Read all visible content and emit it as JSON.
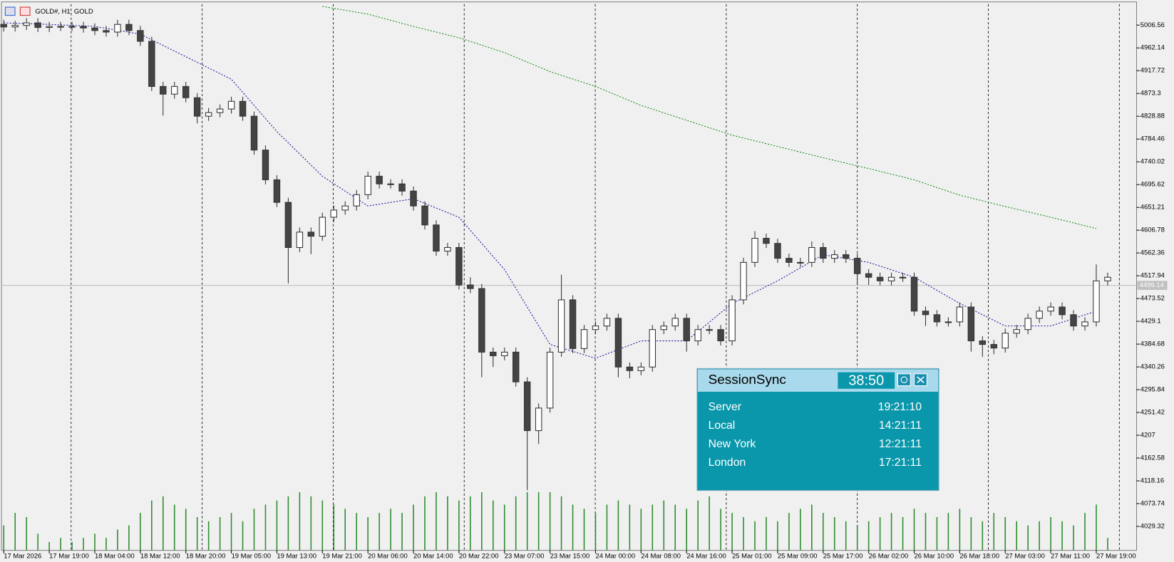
{
  "window": {
    "symbol_label": "GOLD#, H1: GOLD"
  },
  "chart_data": {
    "type": "candlestick",
    "open": [
      5008,
      5003,
      5006,
      5011,
      5002,
      5004,
      5004,
      5004,
      5001,
      4996,
      4993,
      5008,
      4996,
      4975,
      4887,
      4872,
      4887,
      4865,
      4829,
      4836,
      4843,
      4858,
      4829,
      4763,
      4705,
      4661,
      4573,
      4603,
      4595,
      4632,
      4646,
      4654,
      4676,
      4712,
      4697,
      4697,
      4683,
      4654,
      4617,
      4566,
      4573,
      4500,
      4493,
      4369,
      4362,
      4369,
      4311,
      4216,
      4260,
      4369,
      4471,
      4376,
      4413,
      4420,
      4435,
      4340,
      4333,
      4340,
      4413,
      4420,
      4435,
      4391,
      4413,
      4413,
      4391,
      4471,
      4544,
      4591,
      4581,
      4552,
      4544,
      4544,
      4573,
      4552,
      4559,
      4552,
      4522,
      4515,
      4508,
      4515,
      4515,
      4449,
      4442,
      4428,
      4428,
      4457,
      4391,
      4384,
      4377,
      4406,
      4413,
      4435,
      4449,
      4457,
      4442,
      4420,
      4428,
      4508
    ],
    "high": [
      5017,
      5015,
      5020,
      5020,
      5013,
      5013,
      5013,
      5013,
      5010,
      5005,
      5017,
      5017,
      5005,
      4984,
      4896,
      4896,
      4896,
      4874,
      4845,
      4852,
      4867,
      4867,
      4838,
      4772,
      4714,
      4670,
      4612,
      4612,
      4641,
      4655,
      4663,
      4685,
      4721,
      4721,
      4706,
      4706,
      4692,
      4663,
      4626,
      4582,
      4582,
      4515,
      4502,
      4378,
      4378,
      4378,
      4320,
      4269,
      4378,
      4520,
      4480,
      4422,
      4429,
      4444,
      4444,
      4349,
      4349,
      4422,
      4429,
      4444,
      4444,
      4422,
      4422,
      4422,
      4480,
      4553,
      4605,
      4600,
      4590,
      4561,
      4553,
      4585,
      4582,
      4568,
      4568,
      4561,
      4531,
      4524,
      4524,
      4524,
      4524,
      4458,
      4451,
      4437,
      4466,
      4466,
      4400,
      4393,
      4415,
      4422,
      4444,
      4458,
      4466,
      4466,
      4451,
      4437,
      4540,
      4524
    ],
    "low": [
      4994,
      4994,
      4997,
      4993,
      4993,
      4995,
      4995,
      4992,
      4987,
      4984,
      4984,
      4987,
      4966,
      4878,
      4830,
      4863,
      4856,
      4815,
      4820,
      4827,
      4834,
      4820,
      4754,
      4696,
      4652,
      4503,
      4564,
      4560,
      4586,
      4623,
      4637,
      4645,
      4667,
      4688,
      4688,
      4674,
      4645,
      4608,
      4557,
      4557,
      4491,
      4484,
      4320,
      4340,
      4353,
      4302,
      4100,
      4190,
      4251,
      4360,
      4367,
      4367,
      4404,
      4411,
      4320,
      4318,
      4324,
      4331,
      4404,
      4411,
      4370,
      4382,
      4404,
      4382,
      4382,
      4462,
      4535,
      4572,
      4543,
      4535,
      4535,
      4535,
      4543,
      4543,
      4543,
      4500,
      4500,
      4499,
      4499,
      4506,
      4440,
      4420,
      4419,
      4419,
      4419,
      4370,
      4360,
      4365,
      4368,
      4397,
      4404,
      4426,
      4440,
      4433,
      4411,
      4411,
      4419,
      4499
    ],
    "close": [
      5003,
      5006,
      5011,
      5002,
      5004,
      5004,
      5004,
      5001,
      4996,
      4993,
      5008,
      4996,
      4975,
      4887,
      4872,
      4887,
      4865,
      4829,
      4836,
      4843,
      4858,
      4829,
      4763,
      4705,
      4661,
      4573,
      4603,
      4595,
      4632,
      4646,
      4654,
      4676,
      4712,
      4697,
      4697,
      4683,
      4654,
      4617,
      4566,
      4573,
      4500,
      4493,
      4369,
      4362,
      4369,
      4311,
      4216,
      4260,
      4369,
      4471,
      4376,
      4413,
      4420,
      4435,
      4340,
      4333,
      4340,
      4413,
      4420,
      4435,
      4391,
      4413,
      4413,
      4391,
      4471,
      4544,
      4591,
      4581,
      4552,
      4544,
      4544,
      4573,
      4552,
      4559,
      4552,
      4522,
      4515,
      4508,
      4515,
      4515,
      4449,
      4442,
      4428,
      4428,
      4457,
      4391,
      4384,
      4377,
      4406,
      4413,
      4435,
      4449,
      4457,
      4442,
      4420,
      4428,
      4508,
      4515
    ],
    "volume": [
      30,
      45,
      40,
      20,
      10,
      15,
      10,
      15,
      20,
      15,
      25,
      30,
      45,
      60,
      65,
      55,
      50,
      40,
      35,
      40,
      45,
      35,
      50,
      55,
      60,
      65,
      70,
      65,
      60,
      55,
      50,
      45,
      40,
      45,
      50,
      45,
      55,
      65,
      70,
      65,
      60,
      65,
      70,
      60,
      55,
      65,
      70,
      70,
      70,
      65,
      55,
      50,
      45,
      55,
      60,
      55,
      50,
      55,
      60,
      55,
      50,
      60,
      65,
      50,
      45,
      40,
      35,
      40,
      35,
      45,
      50,
      55,
      45,
      40,
      35,
      30,
      35,
      40,
      45,
      40,
      50,
      45,
      40,
      45,
      50,
      40,
      35,
      45,
      40,
      35,
      30,
      35,
      40,
      35,
      30,
      45,
      55,
      15
    ],
    "vlim": [
      0,
      90
    ],
    "time_labels": [
      "17 Mar 2026",
      "17 Mar 19:00",
      "18 Mar 04:00",
      "18 Mar 12:00",
      "18 Mar 20:00",
      "19 Mar 05:00",
      "19 Mar 13:00",
      "19 Mar 21:00",
      "20 Mar 06:00",
      "20 Mar 14:00",
      "20 Mar 22:00",
      "23 Mar 07:00",
      "23 Mar 15:00",
      "24 Mar 00:00",
      "24 Mar 08:00",
      "24 Mar 16:00",
      "25 Mar 01:00",
      "25 Mar 09:00",
      "25 Mar 17:00",
      "26 Mar 02:00",
      "26 Mar 10:00",
      "26 Mar 18:00",
      "27 Mar 03:00",
      "27 Mar 11:00",
      "27 Mar 19:00"
    ],
    "moving_averages": [
      {
        "color": "#1a1aa0",
        "values": [
          5011,
          5008,
          5004,
          4989,
          4945,
          4901,
          4799,
          4712,
          4654,
          4668,
          4632,
          4530,
          4384,
          4357,
          4391,
          4391,
          4464,
          4508,
          4559,
          4544,
          4515,
          4464,
          4420,
          4420,
          4449
        ]
      },
      {
        "color": "#1a8c1a",
        "values": [
          null,
          null,
          null,
          null,
          null,
          null,
          null,
          5043,
          5028,
          5004,
          4982,
          4953,
          4916,
          4887,
          4850,
          4821,
          4792,
          4770,
          4748,
          4727,
          4705,
          4675,
          4653,
          4632,
          4610
        ]
      }
    ],
    "ylim": [
      3982.6,
      5047.4
    ],
    "yticks": [
      5006.56,
      4962.14,
      4917.72,
      4873.3,
      4828.88,
      4784.46,
      4740.02,
      4695.62,
      4651.21,
      4606.78,
      4562.36,
      4517.94,
      4473.52,
      4429.1,
      4384.68,
      4340.26,
      4295.84,
      4251.42,
      4207,
      4162.58,
      4118.16,
      4073.74,
      4029.32
    ],
    "current_price": 4499.14
  },
  "panel": {
    "title": "SessionSync",
    "timer": "38:50",
    "rows": [
      [
        "Server",
        "19:21:10"
      ],
      [
        "Local",
        "14:21:11"
      ],
      [
        "New York",
        "12:21:11"
      ],
      [
        "London",
        "17:21:11"
      ]
    ]
  }
}
